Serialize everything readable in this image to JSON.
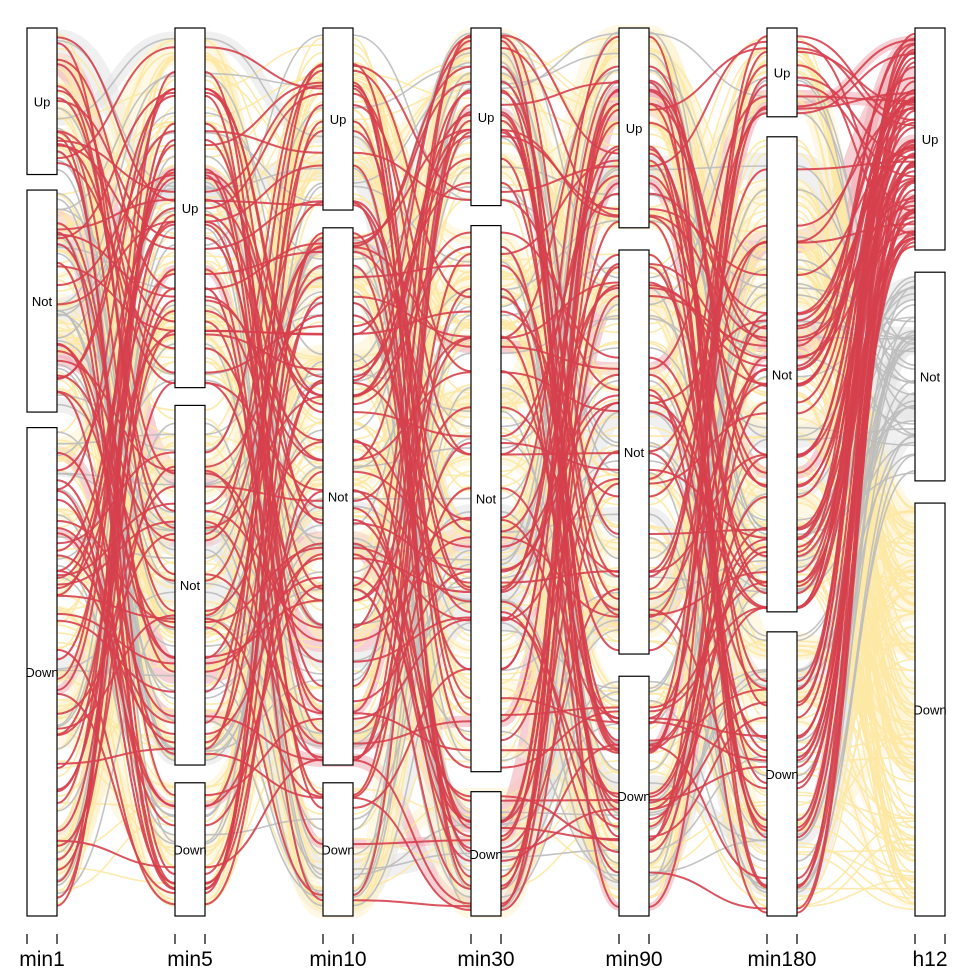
{
  "chart_data": {
    "type": "alluvial",
    "axes": [
      "min1",
      "min5",
      "min10",
      "min30",
      "min90",
      "min180",
      "h12"
    ],
    "strata": [
      [
        {
          "label": "Up",
          "size": 0.165
        },
        {
          "label": "Not",
          "size": 0.25
        },
        {
          "label": "Down",
          "size": 0.55
        }
      ],
      [
        {
          "label": "Up",
          "size": 0.405
        },
        {
          "label": "Not",
          "size": 0.405
        },
        {
          "label": "Down",
          "size": 0.15
        }
      ],
      [
        {
          "label": "Up",
          "size": 0.205
        },
        {
          "label": "Not",
          "size": 0.605
        },
        {
          "label": "Down",
          "size": 0.15
        }
      ],
      [
        {
          "label": "Up",
          "size": 0.2
        },
        {
          "label": "Not",
          "size": 0.615
        },
        {
          "label": "Down",
          "size": 0.14
        }
      ],
      [
        {
          "label": "Up",
          "size": 0.225
        },
        {
          "label": "Not",
          "size": 0.455
        },
        {
          "label": "Down",
          "size": 0.27
        }
      ],
      [
        {
          "label": "Up",
          "size": 0.1
        },
        {
          "label": "Not",
          "size": 0.535
        },
        {
          "label": "Down",
          "size": 0.32
        }
      ],
      [
        {
          "label": "Up",
          "size": 0.25
        },
        {
          "label": "Not",
          "size": 0.235
        },
        {
          "label": "Down",
          "size": 0.465
        }
      ]
    ],
    "flow_colors": {
      "Up": "#d6404e",
      "Not": "#bdbdbd",
      "Down": "#fde8a4"
    },
    "fill_colors": {
      "Up": "#eeaab0",
      "Not": "#e3e3e3",
      "Down": "#fdf2d0"
    },
    "colored_by": "h12"
  }
}
